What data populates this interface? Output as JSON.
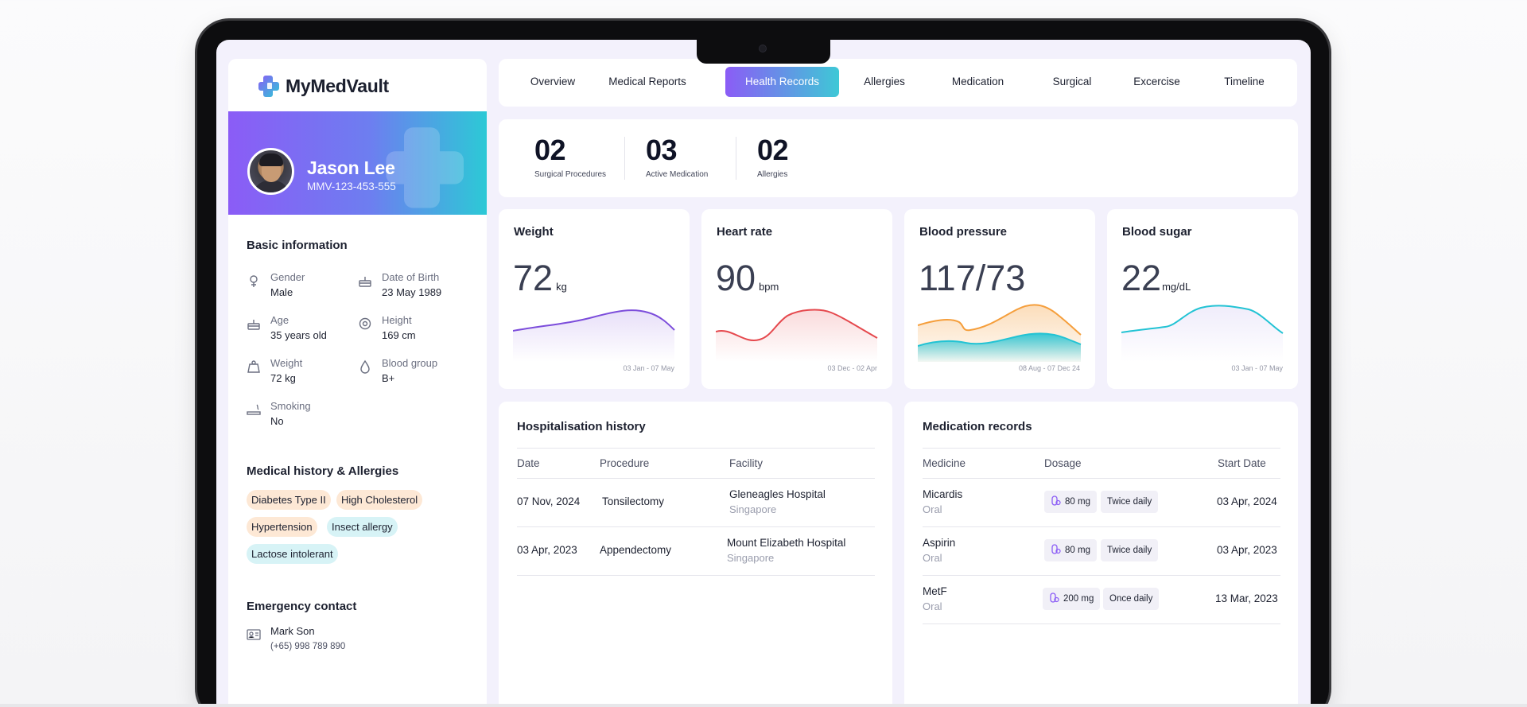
{
  "app": {
    "name": "MyMedVault"
  },
  "profile": {
    "name": "Jason Lee",
    "id": "MMV-123-453-555"
  },
  "basic_info": {
    "title": "Basic information",
    "items": [
      {
        "label": "Gender",
        "value": "Male",
        "icon": "gender-icon"
      },
      {
        "label": "Date of Birth",
        "value": "23 May 1989",
        "icon": "cake-icon"
      },
      {
        "label": "Age",
        "value": "35 years old",
        "icon": "cake-icon"
      },
      {
        "label": "Height",
        "value": "169 cm",
        "icon": "tape-measure-icon"
      },
      {
        "label": "Weight",
        "value": "72 kg",
        "icon": "weight-icon"
      },
      {
        "label": "Blood group",
        "value": "B+",
        "icon": "blood-drop-icon"
      },
      {
        "label": "Smoking",
        "value": "No",
        "icon": "smoking-icon"
      }
    ]
  },
  "medical_history": {
    "title": "Medical history & Allergies",
    "tags": [
      {
        "label": "Diabetes Type II",
        "color": "orange"
      },
      {
        "label": "High Cholesterol",
        "color": "orange"
      },
      {
        "label": "Hypertension",
        "color": "orange"
      },
      {
        "label": "Insect allergy",
        "color": "teal"
      },
      {
        "label": "Lactose intolerant",
        "color": "teal"
      }
    ]
  },
  "emergency": {
    "title": "Emergency contact",
    "name": "Mark Son",
    "phone": "(+65) 998 789 890"
  },
  "nav": {
    "tabs": [
      "Overview",
      "Medical Reports",
      "Health Records",
      "Allergies",
      "Medication",
      "Surgical",
      "Excercise",
      "Timeline"
    ],
    "active": "Health Records"
  },
  "summary": [
    {
      "num": "02",
      "label": "Surgical Procedures"
    },
    {
      "num": "03",
      "label": "Active Medication"
    },
    {
      "num": "02",
      "label": "Allergies"
    }
  ],
  "metrics": [
    {
      "title": "Weight",
      "value": "72",
      "unit": "kg",
      "range": "03 Jan - 07 May",
      "color": "#7c4ddb"
    },
    {
      "title": "Heart rate",
      "value": "90",
      "unit": "bpm",
      "range": "03 Dec - 02 Apr",
      "color": "#e5484d"
    },
    {
      "title": "Blood pressure",
      "value": "117/73",
      "unit": "",
      "range": "08 Aug - 07 Dec 24",
      "color": "#f59e3b",
      "color2": "#22c3d4"
    },
    {
      "title": "Blood sugar",
      "value": "22",
      "unit": "mg/dL",
      "range": "03 Jan - 07 May",
      "color": "#22c3d4"
    }
  ],
  "hospitalisation": {
    "title": "Hospitalisation history",
    "headers": [
      "Date",
      "Procedure",
      "Facility"
    ],
    "rows": [
      {
        "date": "07 Nov, 2024",
        "procedure": "Tonsilectomy",
        "facility": "Gleneagles Hospital",
        "location": "Singapore"
      },
      {
        "date": "03 Apr, 2023",
        "procedure": "Appendectomy",
        "facility": "Mount Elizabeth Hospital",
        "location": "Singapore"
      }
    ]
  },
  "medication": {
    "title": "Medication records",
    "headers": [
      "Medicine",
      "Dosage",
      "Start Date"
    ],
    "rows": [
      {
        "name": "Micardis",
        "route": "Oral",
        "dose": "80 mg",
        "freq": "Twice daily",
        "start": "03 Apr, 2024"
      },
      {
        "name": "Aspirin",
        "route": "Oral",
        "dose": "80 mg",
        "freq": "Twice daily",
        "start": "03 Apr, 2023"
      },
      {
        "name": "MetF",
        "route": "Oral",
        "dose": "200 mg",
        "freq": "Once daily",
        "start": "13 Mar, 2023"
      }
    ]
  }
}
